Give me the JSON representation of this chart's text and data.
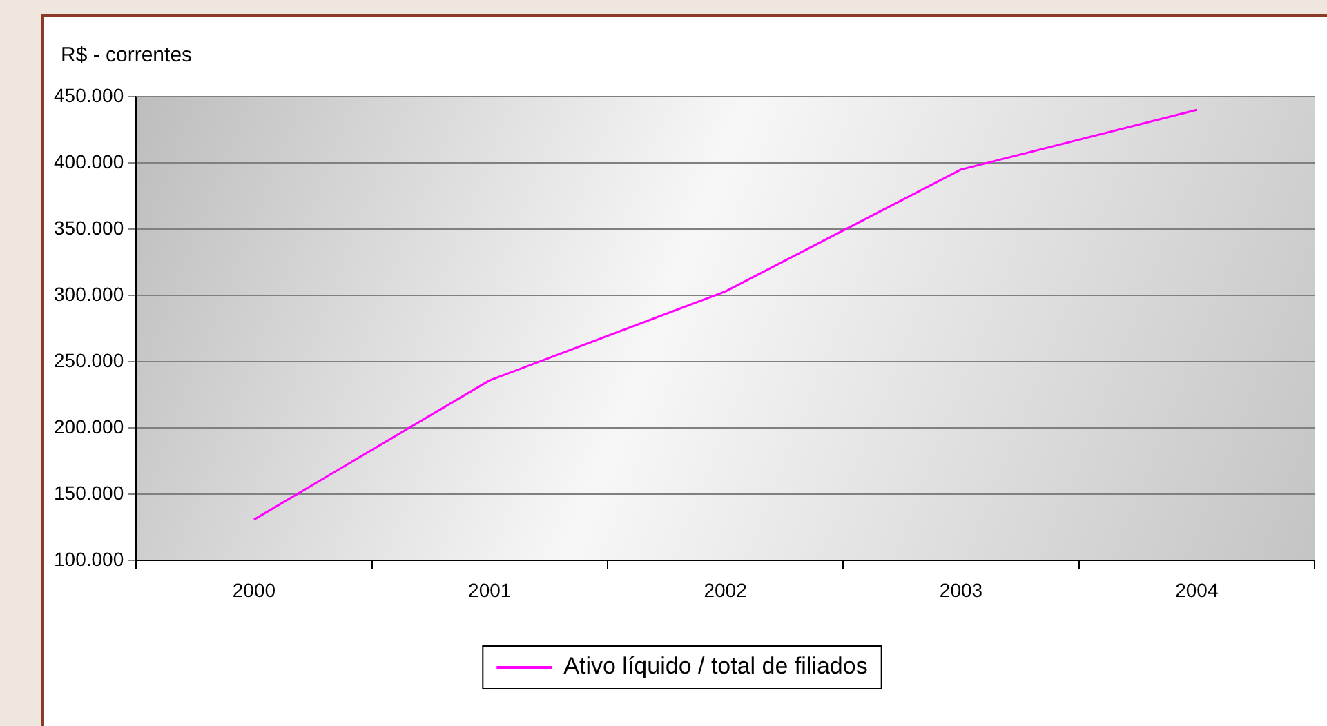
{
  "chart_data": {
    "type": "line",
    "ylabel": "R$ - correntes",
    "categories": [
      "2000",
      "2001",
      "2002",
      "2003",
      "2004"
    ],
    "series": [
      {
        "name": "Ativo líquido / total de filiados",
        "color": "#ff00ff",
        "values": [
          131000,
          236000,
          303000,
          395000,
          440000
        ]
      }
    ],
    "ylim": [
      100000,
      450000
    ],
    "yticks": [
      {
        "value": 100000,
        "label": "100.000"
      },
      {
        "value": 150000,
        "label": "150.000"
      },
      {
        "value": 200000,
        "label": "200.000"
      },
      {
        "value": 250000,
        "label": "250.000"
      },
      {
        "value": 300000,
        "label": "300.000"
      },
      {
        "value": 350000,
        "label": "350.000"
      },
      {
        "value": 400000,
        "label": "400.000"
      },
      {
        "value": 450000,
        "label": "450.000"
      }
    ],
    "grid": "y",
    "legend": "bottom",
    "marker": "none",
    "line_style": "solid"
  }
}
